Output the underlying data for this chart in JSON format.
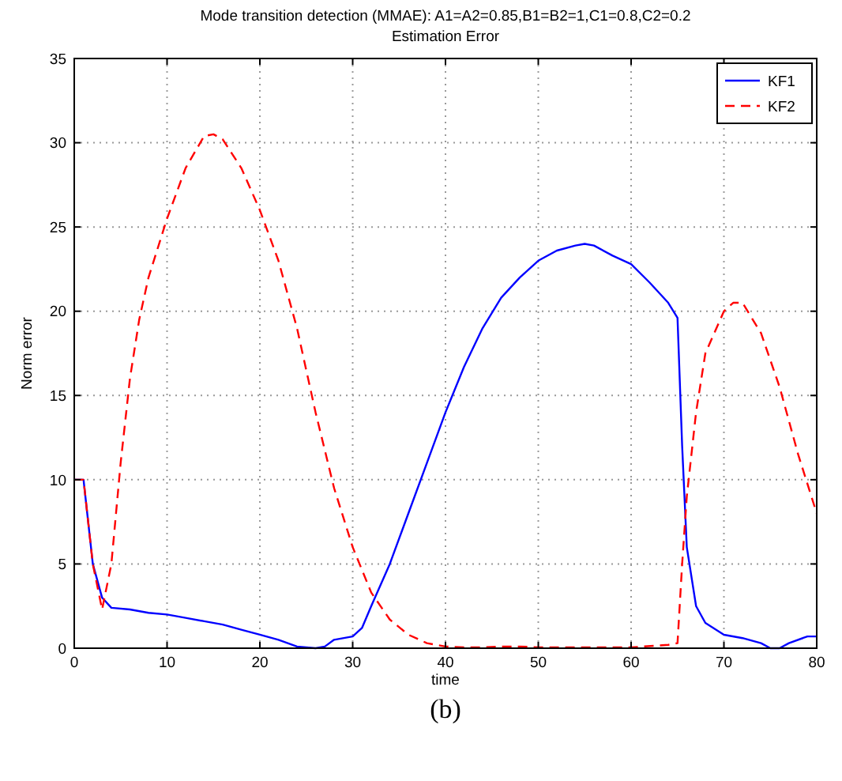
{
  "chart_data": {
    "type": "line",
    "title": "Mode transition detection (MMAE):  A1=A2=0.85,B1=B2=1,C1=0.8,C2=0.2",
    "subtitle": "Estimation Error",
    "xlabel": "time",
    "ylabel": "Norm error",
    "annotations": [
      "(b)"
    ],
    "xlim": [
      0,
      80
    ],
    "ylim": [
      0,
      35
    ],
    "xticks": [
      0,
      10,
      20,
      30,
      40,
      50,
      60,
      70,
      80
    ],
    "yticks": [
      0,
      5,
      10,
      15,
      20,
      25,
      30,
      35
    ],
    "grid": true,
    "legend": "top right",
    "marker": "none",
    "series": [
      {
        "name": "KF1",
        "color": "#0000ff",
        "line_style": "solid",
        "x": [
          0,
          1,
          2,
          3,
          4,
          6,
          8,
          10,
          12,
          14,
          16,
          18,
          20,
          22,
          24,
          26,
          27,
          28,
          30,
          31,
          32,
          34,
          36,
          38,
          40,
          42,
          44,
          46,
          48,
          50,
          52,
          54,
          55,
          56,
          58,
          60,
          62,
          64,
          65,
          65.5,
          66,
          67,
          68,
          70,
          72,
          74,
          75,
          76,
          77,
          79,
          80
        ],
        "values": [
          10,
          10,
          5,
          3,
          2.4,
          2.3,
          2.1,
          2.0,
          1.8,
          1.6,
          1.4,
          1.1,
          0.8,
          0.5,
          0.1,
          0,
          0.1,
          0.5,
          0.7,
          1.2,
          2.5,
          5,
          8,
          11,
          14,
          16.7,
          19,
          20.8,
          22,
          23,
          23.6,
          23.9,
          24,
          23.9,
          23.3,
          22.8,
          21.7,
          20.5,
          19.6,
          12,
          6,
          2.5,
          1.5,
          0.8,
          0.6,
          0.3,
          0,
          0,
          0.3,
          0.7,
          0.7
        ]
      },
      {
        "name": "KF2",
        "color": "#ff0000",
        "line_style": "dashed",
        "x": [
          0,
          1,
          2,
          3,
          4,
          5,
          6,
          7,
          8,
          10,
          12,
          14,
          15,
          16,
          18,
          20,
          22,
          24,
          26,
          28,
          30,
          32,
          34,
          36,
          38,
          40,
          42,
          44,
          46,
          48,
          50,
          55,
          60,
          64,
          65,
          65.5,
          66,
          67,
          68,
          70,
          71,
          72,
          74,
          76,
          78,
          80
        ],
        "values": [
          10,
          10,
          5,
          2.3,
          5,
          11,
          16,
          19.5,
          22,
          25.5,
          28.5,
          30.4,
          30.5,
          30.2,
          28.5,
          26,
          23,
          19,
          14,
          9.5,
          6,
          3.3,
          1.7,
          0.8,
          0.3,
          0.1,
          0.05,
          0.05,
          0.1,
          0.1,
          0.05,
          0.05,
          0.05,
          0.2,
          0.3,
          5,
          9,
          14,
          17.5,
          20,
          20.5,
          20.5,
          18.7,
          15.5,
          11.5,
          8
        ]
      }
    ]
  }
}
